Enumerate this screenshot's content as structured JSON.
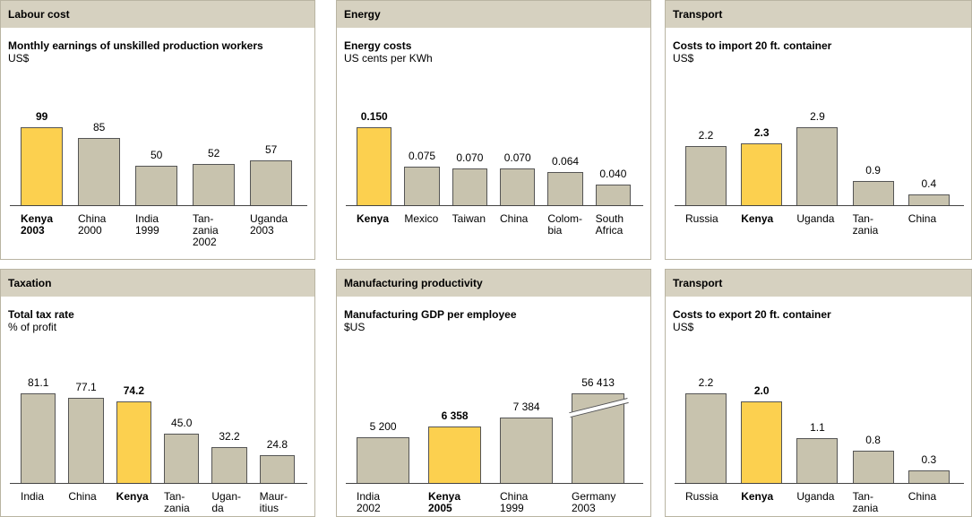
{
  "chart_data": [
    {
      "type": "bar",
      "header": "Labour cost",
      "title": "Monthly earnings of unskilled production workers",
      "subtitle": "US$",
      "categories": [
        "Kenya\n2003",
        "China\n2000",
        "India\n1999",
        "Tan-\nzania\n2002",
        "Uganda\n2003"
      ],
      "values": [
        99,
        85,
        50,
        52,
        57
      ],
      "color": "#c8c3ae",
      "highlight_color": "#fcd04f",
      "highlight": 0
    },
    {
      "type": "bar",
      "header": "Energy",
      "title": "Energy costs",
      "subtitle": "US cents per KWh",
      "categories": [
        "Kenya",
        "Mexico",
        "Taiwan",
        "China",
        "Colom-\nbia",
        "South\nAfrica"
      ],
      "values": [
        0.15,
        0.075,
        0.07,
        0.07,
        0.064,
        0.04
      ],
      "value_labels": [
        "0.150",
        "0.075",
        "0.070",
        "0.070",
        "0.064",
        "0.040"
      ],
      "color": "#c8c3ae",
      "highlight_color": "#fcd04f",
      "highlight": 0
    },
    {
      "type": "bar",
      "header": "Transport",
      "title": "Costs to import 20 ft. container",
      "subtitle": "US$",
      "categories": [
        "Russia",
        "Kenya",
        "Uganda",
        "Tan-\nzania",
        "China"
      ],
      "values": [
        2.2,
        2.3,
        2.9,
        0.9,
        0.4
      ],
      "color": "#c8c3ae",
      "highlight_color": "#fcd04f",
      "highlight": 1
    },
    {
      "type": "bar",
      "header": "Taxation",
      "title": "Total tax rate",
      "subtitle": "% of profit",
      "categories": [
        "India",
        "China",
        "Kenya",
        "Tan-\nzania",
        "Ugan-\nda",
        "Maur-\nitius"
      ],
      "values": [
        81.1,
        77.1,
        74.2,
        45,
        32.2,
        24.8
      ],
      "value_labels": [
        "81.1",
        "77.1",
        "74.2",
        "45.0",
        "32.2",
        "24.8"
      ],
      "color": "#c8c3ae",
      "highlight_color": "#fcd04f",
      "highlight": 2
    },
    {
      "type": "bar",
      "header": "Manufacturing productivity",
      "title": "Manufacturing GDP per employee",
      "subtitle": "$US",
      "categories": [
        "India\n2002",
        "Kenya\n2005",
        "China\n1999",
        "Germany\n2003"
      ],
      "values": [
        5200,
        6358,
        7384,
        56413
      ],
      "value_labels": [
        "5 200",
        "6 358",
        "7 384",
        "56 413"
      ],
      "color": "#c8c3ae",
      "highlight_color": "#fcd04f",
      "highlight": 1
    },
    {
      "type": "bar",
      "header": "Transport",
      "title": "Costs to export 20 ft. container",
      "subtitle": "US$",
      "categories": [
        "Russia",
        "Kenya",
        "Uganda",
        "Tan-\nzania",
        "China"
      ],
      "values": [
        2.2,
        2,
        1.1,
        0.8,
        0.3
      ],
      "value_labels": [
        "2.2",
        "2.0",
        "1.1",
        "0.8",
        "0.3"
      ],
      "color": "#c8c3ae",
      "highlight_color": "#fcd04f",
      "highlight": 1
    }
  ]
}
